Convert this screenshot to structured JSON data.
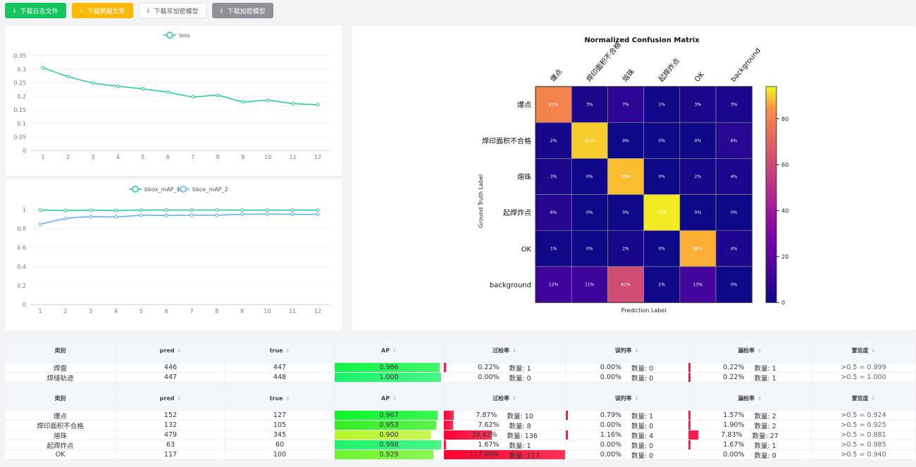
{
  "toolbar": {
    "buttons": [
      {
        "label": "下载日志文件",
        "bg": "#13c55f",
        "fg": "#ffffff",
        "icon": "download-icon"
      },
      {
        "label": "下载简报文件",
        "bg": "#fbb90a",
        "fg": "#ffffff",
        "icon": "download-icon"
      },
      {
        "label": "下载非加密模型",
        "bg": "#ffffff",
        "fg": "#555555",
        "icon": "download-icon"
      },
      {
        "label": "下载加密模型",
        "bg": "#8f9196",
        "fg": "#ffffff",
        "icon": "download-icon"
      }
    ]
  },
  "chart_data": [
    {
      "type": "line",
      "x": [
        1,
        2,
        3,
        4,
        5,
        6,
        7,
        8,
        9,
        10,
        11,
        12
      ],
      "ylim": [
        0,
        0.35
      ],
      "yticks": [
        0,
        0.05,
        0.1,
        0.15,
        0.2,
        0.25,
        0.3,
        0.35
      ],
      "legend": "top",
      "series": [
        {
          "name": "loss",
          "color": "#22c9a0",
          "values": [
            0.305,
            0.273,
            0.249,
            0.237,
            0.227,
            0.215,
            0.198,
            0.203,
            0.18,
            0.185,
            0.173,
            0.169
          ]
        }
      ]
    },
    {
      "type": "line",
      "x": [
        1,
        2,
        3,
        4,
        5,
        6,
        7,
        8,
        9,
        10,
        11,
        12
      ],
      "ylim": [
        0,
        1
      ],
      "yticks": [
        0,
        0.2,
        0.4,
        0.6,
        0.8,
        1
      ],
      "legend": "top",
      "series": [
        {
          "name": "bbox_mAP_1",
          "color": "#22c9a0",
          "values": [
            0.995,
            0.99,
            0.993,
            0.99,
            0.994,
            0.995,
            0.995,
            0.996,
            0.994,
            0.994,
            0.994,
            0.994
          ]
        },
        {
          "name": "bbox_mAP_2",
          "color": "#5aaef0",
          "values": [
            0.845,
            0.905,
            0.925,
            0.923,
            0.94,
            0.938,
            0.941,
            0.941,
            0.951,
            0.953,
            0.951,
            0.949
          ]
        }
      ]
    },
    {
      "type": "heatmap",
      "title": "Normalized Confusion Matrix",
      "xlabel": "Prediction Label",
      "ylabel": "Ground Truth Label",
      "labels": [
        "爆点",
        "焊印面积不合格",
        "熔珠",
        "起焊炸点",
        "OK",
        "background"
      ],
      "values": [
        [
          81,
          3,
          7,
          1,
          3,
          3
        ],
        [
          2,
          91,
          0,
          0,
          0,
          6
        ],
        [
          3,
          0,
          90,
          0,
          2,
          4
        ],
        [
          6,
          0,
          0,
          93,
          0,
          0
        ],
        [
          1,
          0,
          2,
          0,
          89,
          4
        ],
        [
          12,
          11,
          61,
          1,
          13,
          0
        ]
      ],
      "colorbar": {
        "range": [
          0,
          94
        ],
        "ticks": [
          0,
          20,
          40,
          60,
          80
        ],
        "colormap": "plasma"
      }
    }
  ],
  "tables": [
    {
      "headers": [
        "类别",
        "pred",
        "true",
        "AP",
        "过检率",
        "误判率",
        "漏检率",
        "置信度"
      ],
      "rows": [
        {
          "cls": "焊盘",
          "pred": "446",
          "true": "447",
          "ap": "0.986",
          "ap_color": "#10f546",
          "over": "0.22%",
          "over_n": "数量: 1",
          "over_v": 0.22,
          "mis": "0.00%",
          "mis_n": "数量: 0",
          "mis_v": 0,
          "miss": "0.22%",
          "miss_n": "数量: 1",
          "miss_v": 0.22,
          "conf": ">0.5 = 0.999"
        },
        {
          "cls": "焊缝轨迹",
          "pred": "447",
          "true": "448",
          "ap": "1.000",
          "ap_color": "#1af36a",
          "over": "0.00%",
          "over_n": "数量: 0",
          "over_v": 0,
          "mis": "0.00%",
          "mis_n": "数量: 0",
          "mis_v": 0,
          "miss": "0.22%",
          "miss_n": "数量: 1",
          "miss_v": 0.22,
          "conf": ">0.5 = 1.000"
        }
      ]
    },
    {
      "headers": [
        "类别",
        "pred",
        "true",
        "AP",
        "过检率",
        "误判率",
        "漏检率",
        "置信度"
      ],
      "rows": [
        {
          "cls": "爆点",
          "pred": "152",
          "true": "127",
          "ap": "0.967",
          "ap_color": "#0af52a",
          "over": "7.87%",
          "over_n": "数量: 10",
          "over_v": 7.87,
          "mis": "0.79%",
          "mis_n": "数量: 1",
          "mis_v": 0.79,
          "miss": "1.57%",
          "miss_n": "数量: 2",
          "miss_v": 1.57,
          "conf": ">0.5 = 0.924"
        },
        {
          "cls": "焊印面积不合格",
          "pred": "132",
          "true": "105",
          "ap": "0.953",
          "ap_color": "#33ee22",
          "over": "7.62%",
          "over_n": "数量: 8",
          "over_v": 7.62,
          "mis": "0.00%",
          "mis_n": "数量: 0",
          "mis_v": 0,
          "miss": "1.90%",
          "miss_n": "数量: 2",
          "miss_v": 1.9,
          "conf": ">0.5 = 0.925"
        },
        {
          "cls": "熔珠",
          "pred": "479",
          "true": "345",
          "ap": "0.900",
          "ap_color": "#b8f52a",
          "over": "39.42%",
          "over_n": "数量: 136",
          "over_v": 39.42,
          "mis": "1.16%",
          "mis_n": "数量: 4",
          "mis_v": 1.16,
          "miss": "7.83%",
          "miss_n": "数量: 27",
          "miss_v": 7.83,
          "conf": ">0.5 = 0.881"
        },
        {
          "cls": "起焊炸点",
          "pred": "63",
          "true": "60",
          "ap": "0.998",
          "ap_color": "#1cf36a",
          "over": "1.67%",
          "over_n": "数量: 1",
          "over_v": 1.67,
          "mis": "0.00%",
          "mis_n": "数量: 0",
          "mis_v": 0,
          "miss": "1.67%",
          "miss_n": "数量: 1",
          "miss_v": 1.67,
          "conf": ">0.5 = 0.985"
        },
        {
          "cls": "OK",
          "pred": "117",
          "true": "100",
          "ap": "0.929",
          "ap_color": "#6ef52a",
          "over": "117.00%",
          "over_n": "数量: 117",
          "over_v": 117,
          "mis": "0.00%",
          "mis_n": "数量: 0",
          "mis_v": 0,
          "miss": "0.00%",
          "miss_n": "数量: 0",
          "miss_v": 0,
          "conf": ">0.5 = 0.940"
        }
      ]
    }
  ]
}
